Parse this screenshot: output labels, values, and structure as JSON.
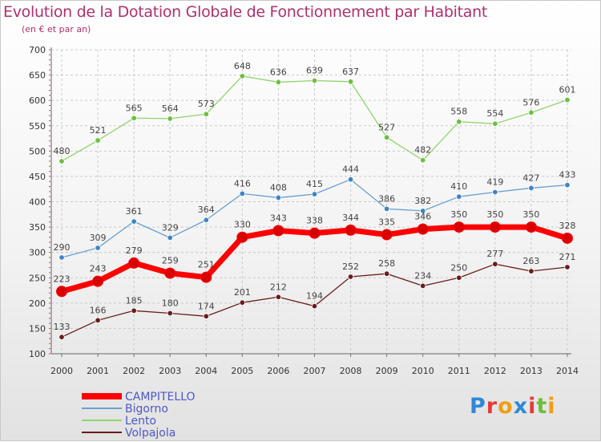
{
  "chart_data": {
    "type": "line",
    "title": "Evolution de la Dotation Globale de Fonctionnement par Habitant",
    "subtitle": "(en € et par an)",
    "x": [
      "2000",
      "2001",
      "2002",
      "2003",
      "2004",
      "2005",
      "2006",
      "2007",
      "2008",
      "2009",
      "2010",
      "2011",
      "2012",
      "2013",
      "2014"
    ],
    "ylim": [
      100,
      700
    ],
    "yticks": [
      100,
      150,
      200,
      250,
      300,
      350,
      400,
      450,
      500,
      550,
      600,
      650,
      700
    ],
    "grid": true,
    "legend_position": "bottom-left",
    "series": [
      {
        "name": "CAMPITELLO",
        "color": "#ff0000",
        "marker": "#d80000",
        "width": 7,
        "values": [
          223,
          243,
          279,
          259,
          251,
          330,
          343,
          338,
          344,
          335,
          346,
          350,
          350,
          350,
          328
        ]
      },
      {
        "name": "Bigorno",
        "color": "#6a9fd0",
        "marker": "#3d85c6",
        "width": 1.3,
        "values": [
          290,
          309,
          361,
          329,
          364,
          416,
          408,
          415,
          444,
          386,
          382,
          410,
          419,
          427,
          433
        ]
      },
      {
        "name": "Lento",
        "color": "#8fd46a",
        "marker": "#6cc040",
        "width": 1.3,
        "values": [
          480,
          521,
          565,
          564,
          573,
          648,
          636,
          639,
          637,
          527,
          482,
          558,
          554,
          576,
          601
        ]
      },
      {
        "name": "Volpajola",
        "color": "#6a1c1c",
        "marker": "#6a1c1c",
        "width": 1.3,
        "values": [
          133,
          166,
          185,
          180,
          174,
          201,
          212,
          194,
          252,
          258,
          234,
          250,
          277,
          263,
          271
        ]
      }
    ]
  },
  "logo": {
    "letters": [
      "P",
      "r",
      "o",
      "x",
      "i",
      "t",
      "i"
    ],
    "colors": [
      "#2f88d6",
      "#e33b3b",
      "#f39c12",
      "#2f88d6",
      "#e33b3b",
      "#6cbf3a",
      "#f39c12"
    ]
  }
}
